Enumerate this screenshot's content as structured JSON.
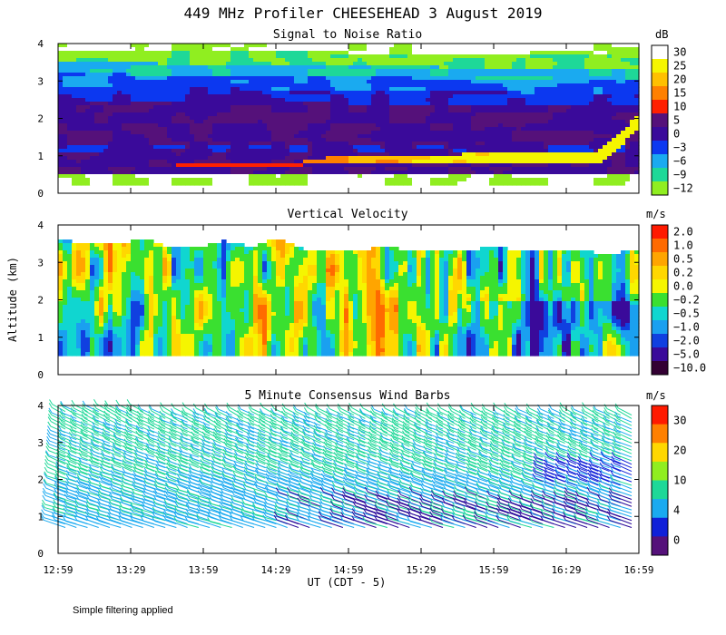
{
  "chart_data": {
    "type": "heatmap",
    "title": "449 MHz Profiler CHEESEHEAD   3 August 2019",
    "ylabel": "Altitude (km)",
    "xlabel": "UT  (CDT - 5)",
    "x_ticks": [
      "12:59",
      "13:29",
      "13:59",
      "14:29",
      "14:59",
      "15:29",
      "15:59",
      "16:29",
      "16:59"
    ],
    "y_ticks": [
      "0",
      "1",
      "2",
      "3",
      "4"
    ],
    "xlim": [
      0,
      240
    ],
    "ylim": [
      0,
      4
    ],
    "panels": [
      {
        "title": "Signal to Noise Ratio",
        "type": "heatmap",
        "units": "dB",
        "colorbar_labels": [
          "30",
          "25",
          "20",
          "15",
          "10",
          "5",
          "0",
          "−3",
          "−6",
          "−9",
          "−12"
        ],
        "colorbar_colors": [
          "#ffffff",
          "#f5f500",
          "#ffc000",
          "#ff8000",
          "#ff2000",
          "#55117a",
          "#3a0a9a",
          "#0c38f0",
          "#1aaaf0",
          "#1ed898",
          "#90ee20"
        ]
      },
      {
        "title": "Vertical Velocity",
        "type": "heatmap",
        "units": "m/s",
        "colorbar_labels": [
          "2.0",
          "1.0",
          "0.5",
          "0.2",
          "0.0",
          "−0.2",
          "−0.5",
          "−1.0",
          "−2.0",
          "−5.0",
          "−10.0"
        ],
        "colorbar_colors": [
          "#ff1a00",
          "#ff6a00",
          "#ffa500",
          "#ffd700",
          "#f5f500",
          "#3ae030",
          "#10d6d0",
          "#1aa0f0",
          "#1040e0",
          "#3a0a9a",
          "#330033"
        ]
      },
      {
        "title": "5 Minute Consensus Wind Barbs",
        "type": "wind_barbs",
        "units": "m/s",
        "colorbar_labels": [
          "30",
          "20",
          "10",
          "4",
          "0"
        ],
        "colorbar_colors": [
          "#ff1a00",
          "#ff8000",
          "#ffd700",
          "#90ee20",
          "#1ed898",
          "#1aaaf0",
          "#1020d8",
          "#55117a"
        ]
      }
    ]
  },
  "footnote": "Simple filtering applied"
}
